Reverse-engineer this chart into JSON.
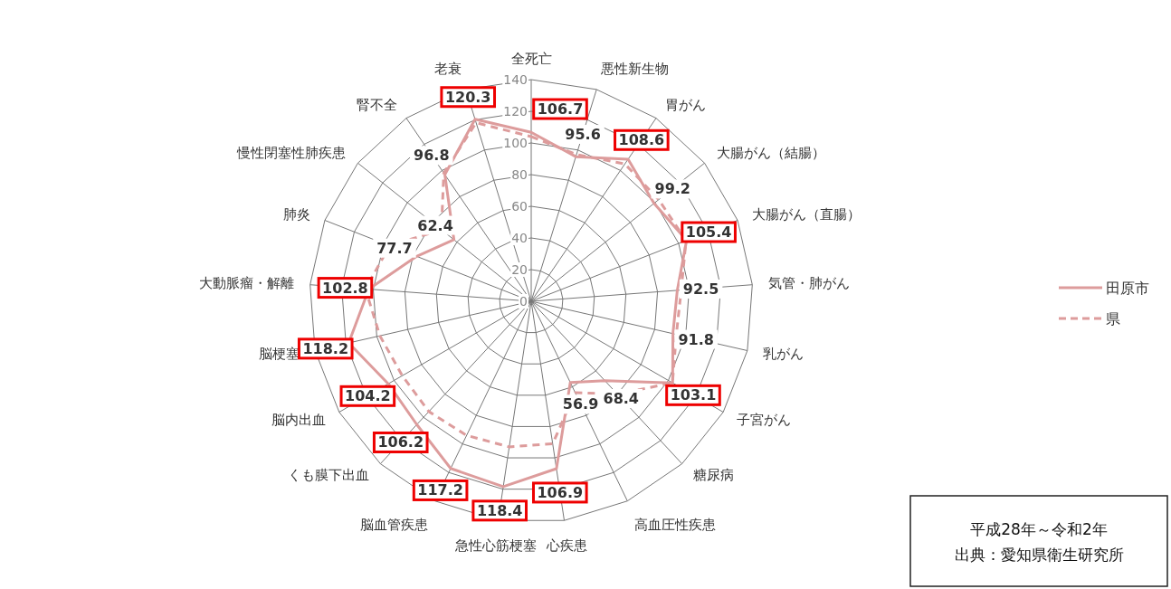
{
  "chart_data": {
    "type": "radar",
    "categories": [
      "全死亡",
      "悪性新生物",
      "胃がん",
      "大腸がん（結腸）",
      "大腸がん（直腸）",
      "気管・肺がん",
      "乳がん",
      "子宮がん",
      "糖尿病",
      "高血圧性疾患",
      "心疾患",
      "急性心筋梗塞",
      "脳血管疾患",
      "くも膜下出血",
      "脳内出血",
      "脳梗塞",
      "大動脈瘤・解離",
      "肺炎",
      "慢性閉塞性肺疾患",
      "腎不全",
      "老衰"
    ],
    "series": [
      {
        "name": "田原市",
        "color": "#dd9c9c",
        "line_style": "solid",
        "values": [
          106.7,
          95.6,
          108.6,
          99.2,
          105.4,
          92.5,
          91.8,
          103.1,
          68.4,
          56.9,
          106.9,
          118.4,
          117.2,
          106.2,
          104.2,
          118.2,
          102.8,
          77.7,
          62.4,
          96.8,
          120.3
        ],
        "value_labels": [
          "106.7",
          "95.6",
          "108.6",
          "99.2",
          "105.4",
          "92.5",
          "91.8",
          "103.1",
          "68.4",
          "56.9",
          "106.9",
          "118.4",
          "117.2",
          "106.2",
          "104.2",
          "118.2",
          "102.8",
          "77.7",
          "62.4",
          "96.8",
          "120.3"
        ]
      },
      {
        "name": "県",
        "color": "#dd9c9c",
        "line_style": "dashed",
        "values": [
          104,
          97,
          105,
          103,
          105,
          95,
          94,
          103,
          80,
          64,
          91,
          93,
          94,
          95,
          94,
          98,
          105,
          96,
          72.5,
          98,
          118
        ]
      }
    ],
    "ylim": [
      0,
      140
    ],
    "yticks": [
      0,
      20,
      40,
      60,
      80,
      100,
      120,
      140
    ],
    "grid": true,
    "legend": "right",
    "annotations": [
      "平成28年～令和2年",
      "出典：愛知県衛生研究所"
    ]
  }
}
